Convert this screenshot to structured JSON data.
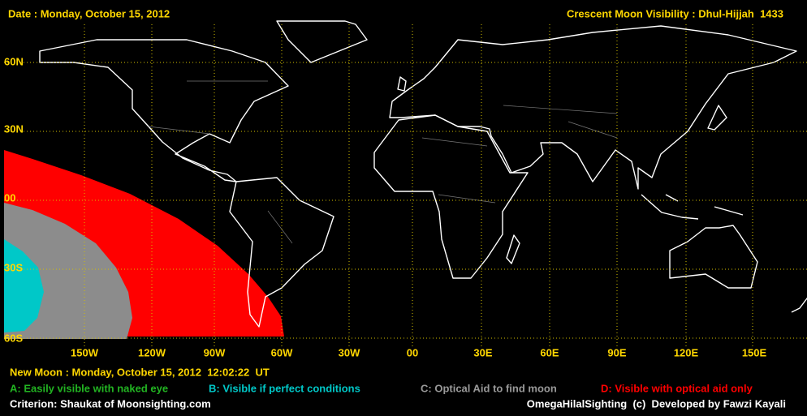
{
  "header": {
    "date": "Date : Monday, October 15, 2012",
    "title": "Crescent Moon Visibility : Dhul-Hijjah  1433"
  },
  "map": {
    "lat_labels": [
      "60N",
      "30N",
      "00",
      "30S",
      "60S"
    ],
    "lon_labels": [
      "150W",
      "120W",
      "90W",
      "60W",
      "30W",
      "00",
      "30E",
      "60E",
      "90E",
      "120E",
      "150E"
    ]
  },
  "footer": {
    "new_moon": "New Moon : Monday, October 15, 2012  12:02:22  UT",
    "legend": [
      "A: Easily visible with naked eye",
      "B: Visible if perfect conditions",
      "C: Optical Aid to find moon",
      "D: Visible with optical aid only"
    ],
    "criterion": "Criterion: Shaukat of Moonsighting.com",
    "credit": "OmegaHilalSighting  (c)  Developed by Fawzi Kayali"
  }
}
